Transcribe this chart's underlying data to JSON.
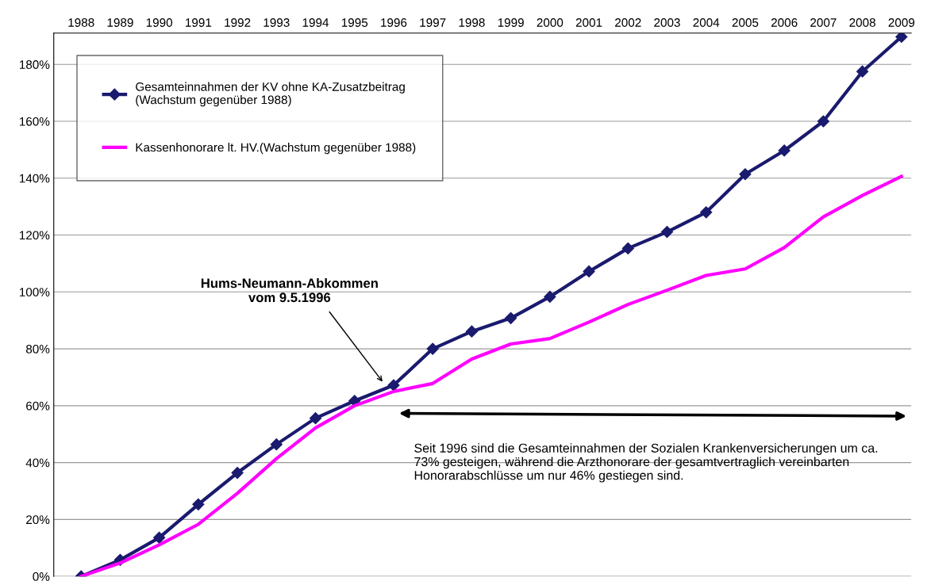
{
  "chart_data": {
    "type": "line",
    "categories": [
      "1988",
      "1989",
      "1990",
      "1991",
      "1992",
      "1993",
      "1994",
      "1995",
      "1996",
      "1997",
      "1998",
      "1999",
      "2000",
      "2001",
      "2002",
      "2003",
      "2004",
      "2005",
      "2006",
      "2007",
      "2008",
      "2009"
    ],
    "series": [
      {
        "name": "Gesamteinnahmen der KV ohne KA-Zusatzbeitrag\n(Wachstum gegenüber 1988)",
        "color": "#1a1a6e",
        "marker": "diamond",
        "values": [
          0,
          5.8,
          13.6,
          25.3,
          36.4,
          46.4,
          55.6,
          61.7,
          67.2,
          80,
          86.1,
          90.8,
          98.3,
          107.2,
          115.3,
          121.1,
          128,
          141.4,
          149.7,
          160,
          177.5,
          189.7
        ]
      },
      {
        "name": "Kassenhonorare lt. HV.(Wachstum gegenüber 1988)",
        "color": "#ff00ff",
        "marker": "none",
        "values": [
          0,
          4.7,
          11.1,
          18.3,
          29.2,
          41.4,
          52.2,
          60,
          65,
          67.8,
          76.4,
          81.7,
          83.6,
          89.4,
          95.6,
          100.6,
          105.8,
          108.1,
          115.6,
          126.4,
          133.9,
          140.6
        ]
      }
    ],
    "ylim": [
      0,
      191
    ],
    "yticks": [
      {
        "value": 0,
        "label": "0%"
      },
      {
        "value": 20,
        "label": "20%"
      },
      {
        "value": 40,
        "label": "40%"
      },
      {
        "value": 60,
        "label": "60%"
      },
      {
        "value": 80,
        "label": "80%"
      },
      {
        "value": 100,
        "label": "100%"
      },
      {
        "value": 120,
        "label": "120%"
      },
      {
        "value": 140,
        "label": "140%"
      },
      {
        "value": 160,
        "label": "160%"
      },
      {
        "value": 180,
        "label": "180%"
      }
    ],
    "grid": "y",
    "legend": "top left",
    "line_style": "solid",
    "annotations": [
      "Hums-Neumann-Abkommen\nvom 9.5.1996",
      "Seit 1996 sind die Gesamteinnahmen der Sozialen Krankenversicherungen um ca.\n73% gesteigen, während die Arzthonorare der gesamtvertraglich vereinbarten\nHonorarabschlüsse um nur 46% gestiegen sind."
    ]
  }
}
